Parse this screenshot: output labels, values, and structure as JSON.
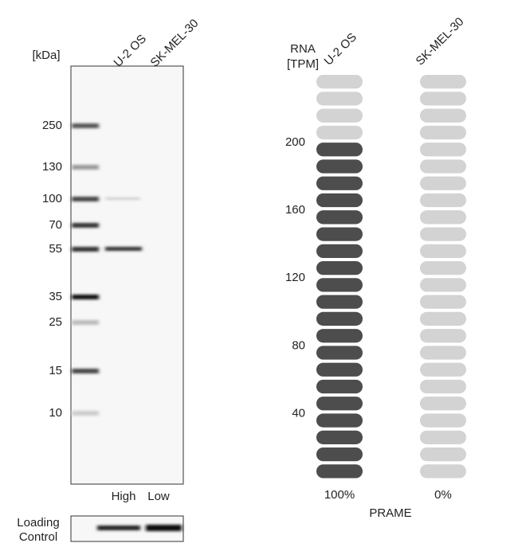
{
  "blot": {
    "unit": "[kDa]",
    "lanes": [
      "U-2 OS",
      "SK-MEL-30"
    ],
    "markers": [
      250,
      130,
      100,
      70,
      55,
      35,
      25,
      15,
      10
    ],
    "expression": [
      "High",
      "Low"
    ],
    "loading_control": [
      "Loading",
      "Control"
    ]
  },
  "rna": {
    "unit": [
      "RNA",
      "[TPM]"
    ],
    "cell_lines": [
      "U-2 OS",
      "SK-MEL-30"
    ],
    "values": [
      200,
      0
    ],
    "percent_labels": [
      "100%",
      "0%"
    ],
    "ylim": [
      0,
      240
    ],
    "yticks": [
      40,
      80,
      120,
      160,
      200
    ],
    "gene": "PRAME",
    "colors": {
      "filled": "#4d4d4d",
      "empty": "#d3d3d3"
    }
  }
}
